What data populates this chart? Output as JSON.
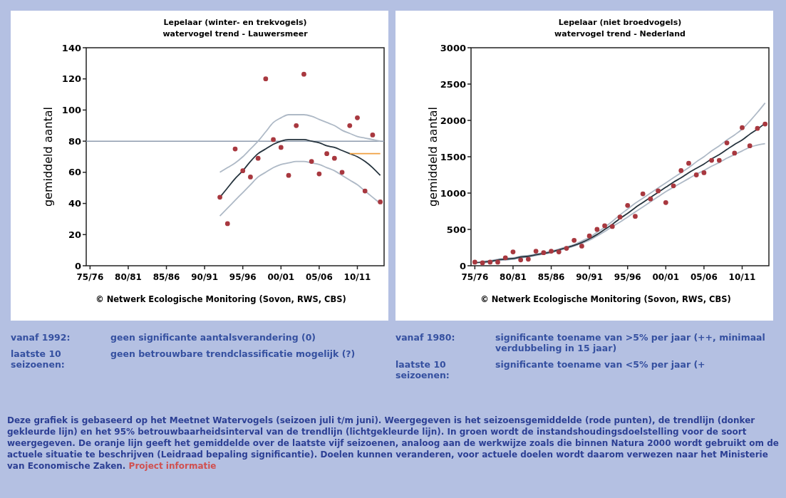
{
  "chart_data": [
    {
      "type": "scatter",
      "title": "Lepelaar (winter- en trekvogels)",
      "subtitle": "watervogel trend - Lauwersmeer",
      "ylabel": "gemiddeld aantal",
      "categories": [
        "75/76",
        null,
        null,
        null,
        null,
        "80/81",
        null,
        null,
        null,
        null,
        "85/86",
        null,
        null,
        null,
        null,
        "90/91",
        null,
        null,
        null,
        null,
        "95/96",
        null,
        null,
        null,
        null,
        "00/01",
        null,
        null,
        null,
        null,
        "05/06",
        null,
        null,
        null,
        null,
        "10/11",
        null,
        null,
        null
      ],
      "ylim": [
        0,
        140
      ],
      "yticks": [
        0,
        20,
        40,
        60,
        80,
        100,
        120,
        140
      ],
      "grid": false,
      "ref_lines": [
        {
          "axis": "y",
          "value": 80,
          "color": "#8e9cae"
        }
      ],
      "series": [
        {
          "type": "line",
          "color": "#aeb9c6",
          "marker": "none",
          "values": [
            null,
            null,
            null,
            null,
            null,
            null,
            null,
            null,
            null,
            null,
            null,
            null,
            null,
            null,
            null,
            null,
            null,
            32,
            37,
            42,
            47,
            52,
            57,
            60,
            63,
            65,
            66,
            67,
            67,
            66,
            65,
            63,
            61,
            58,
            55,
            52,
            48,
            44,
            40
          ]
        },
        {
          "type": "line",
          "color": "#aeb9c6",
          "marker": "none",
          "values": [
            null,
            null,
            null,
            null,
            null,
            null,
            null,
            null,
            null,
            null,
            null,
            null,
            null,
            null,
            null,
            null,
            null,
            60,
            63,
            66,
            70,
            75,
            80,
            86,
            92,
            95,
            97,
            97,
            97,
            96,
            94,
            92,
            90,
            87,
            85,
            83,
            82,
            81,
            80
          ]
        },
        {
          "type": "line",
          "color": "#26343e",
          "marker": "none",
          "values": [
            null,
            null,
            null,
            null,
            null,
            null,
            null,
            null,
            null,
            null,
            null,
            null,
            null,
            null,
            null,
            null,
            null,
            44,
            50,
            56,
            61,
            67,
            72,
            75,
            78,
            80,
            81,
            81,
            81,
            80,
            79,
            77,
            76,
            74,
            72,
            70,
            67,
            63,
            58
          ]
        },
        {
          "type": "line",
          "color": "#f0a040",
          "marker": "none",
          "values": [
            null,
            null,
            null,
            null,
            null,
            null,
            null,
            null,
            null,
            null,
            null,
            null,
            null,
            null,
            null,
            null,
            null,
            null,
            null,
            null,
            null,
            null,
            null,
            null,
            null,
            null,
            null,
            null,
            null,
            null,
            null,
            null,
            null,
            null,
            72,
            72,
            72,
            72,
            72
          ]
        },
        {
          "type": "scatter",
          "color": "#a8383f",
          "marker": "circle",
          "values": [
            null,
            null,
            null,
            null,
            null,
            null,
            null,
            null,
            null,
            null,
            null,
            null,
            null,
            null,
            null,
            null,
            null,
            44,
            27,
            75,
            61,
            57,
            69,
            120,
            81,
            76,
            58,
            90,
            123,
            67,
            59,
            72,
            69,
            60,
            90,
            95,
            48,
            84,
            41
          ]
        }
      ],
      "annotations": [
        "© Netwerk Ecologische Monitoring (Sovon, RWS, CBS)",
        "vanaf 1992:",
        "geen significante aantalsverandering (0)",
        "laatste 10 seizoenen:",
        "geen betrouwbare trendclassificatie mogelijk (?)"
      ]
    },
    {
      "type": "scatter",
      "title": "Lepelaar (niet broedvogels)",
      "subtitle": "watervogel trend - Nederland",
      "ylabel": "gemiddeld aantal",
      "categories": [
        "75/76",
        null,
        null,
        null,
        null,
        "80/81",
        null,
        null,
        null,
        null,
        "85/86",
        null,
        null,
        null,
        null,
        "90/91",
        null,
        null,
        null,
        null,
        "95/96",
        null,
        null,
        null,
        null,
        "00/01",
        null,
        null,
        null,
        null,
        "05/06",
        null,
        null,
        null,
        null,
        "10/11",
        null,
        null,
        null
      ],
      "ylim": [
        0,
        3000
      ],
      "yticks": [
        0,
        500,
        1000,
        1500,
        2000,
        2500,
        3000
      ],
      "grid": false,
      "series": [
        {
          "type": "line",
          "color": "#aeb9c6",
          "marker": "none",
          "values": [
            null,
            40,
            50,
            70,
            80,
            90,
            110,
            120,
            140,
            160,
            180,
            210,
            240,
            270,
            310,
            350,
            410,
            470,
            540,
            600,
            670,
            740,
            810,
            880,
            950,
            1020,
            1080,
            1140,
            1200,
            1260,
            1310,
            1370,
            1420,
            1480,
            1530,
            1580,
            1630,
            1660,
            1680
          ]
        },
        {
          "type": "line",
          "color": "#aeb9c6",
          "marker": "none",
          "values": [
            null,
            60,
            70,
            90,
            100,
            110,
            130,
            140,
            160,
            180,
            200,
            230,
            260,
            290,
            340,
            390,
            460,
            530,
            610,
            700,
            780,
            860,
            930,
            1000,
            1070,
            1140,
            1210,
            1280,
            1350,
            1430,
            1500,
            1580,
            1650,
            1730,
            1800,
            1880,
            1990,
            2110,
            2240
          ]
        },
        {
          "type": "line",
          "color": "#26343e",
          "marker": "none",
          "values": [
            40,
            50,
            60,
            80,
            90,
            100,
            120,
            130,
            150,
            170,
            190,
            220,
            250,
            280,
            320,
            370,
            430,
            500,
            570,
            650,
            720,
            800,
            870,
            940,
            1010,
            1080,
            1150,
            1210,
            1280,
            1340,
            1400,
            1470,
            1530,
            1600,
            1670,
            1730,
            1810,
            1880,
            1960
          ]
        },
        {
          "type": "scatter",
          "color": "#a8383f",
          "marker": "circle",
          "values": [
            50,
            40,
            50,
            50,
            110,
            190,
            80,
            90,
            200,
            180,
            200,
            190,
            240,
            350,
            270,
            410,
            500,
            550,
            540,
            670,
            830,
            680,
            990,
            920,
            1030,
            870,
            1100,
            1310,
            1410,
            1250,
            1280,
            1450,
            1450,
            1690,
            1550,
            1900,
            1650,
            1890,
            1950
          ]
        }
      ],
      "annotations": [
        "© Netwerk Ecologische Monitoring (Sovon, RWS, CBS)",
        "vanaf 1980:",
        "significante toename van >5% per jaar (++, minimaal verdubbeling in 15 jaar)",
        "laatste 10 seizoenen:",
        "significante toename van <5% per jaar (+"
      ]
    },
    {
      "type": "other",
      "annotations": [
        "Deze grafiek is gebaseerd op het Meetnet Watervogels (seizoen juli t/m juni). Weergegeven is het seizoensgemiddelde (rode punten), de trendlijn (donker gekleurde lijn) en het 95% betrouwbaarheidsinterval van de trendlijn (lichtgekleurde lijn). In groen wordt de instandshoudingsdoelstelling voor de soort weergegeven. De oranje lijn geeft het gemiddelde over de laatste vijf seizoenen, analoog aan de werkwijze zoals die binnen Natura 2000 wordt gebruikt om de actuele situatie te beschrijven (Leidraad bepaling significantie). Doelen kunnen veranderen, voor actuele doelen wordt daarom verwezen naar het Ministerie van Economische Zaken.",
        "Project informatie"
      ]
    }
  ]
}
